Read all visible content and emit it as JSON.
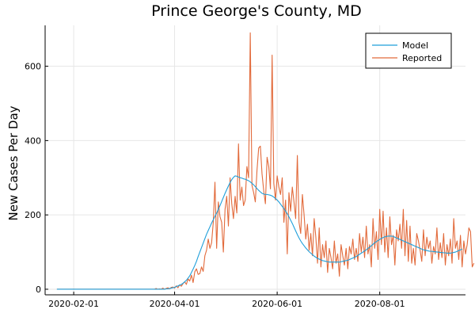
{
  "chart_data": {
    "type": "line",
    "title": "Prince George's County, MD",
    "xlabel": "",
    "ylabel": "New Cases Per Day",
    "x_start": "2020-01-22",
    "x_range": [
      "2020-01-15",
      "2020-09-21"
    ],
    "xticks": [
      "2020-02-01",
      "2020-04-01",
      "2020-06-01",
      "2020-08-01"
    ],
    "ylim": [
      -15,
      710
    ],
    "yticks": [
      0,
      200,
      400,
      600
    ],
    "grid": true,
    "legend_position": "top-right",
    "series": [
      {
        "name": "Model",
        "color": "#1f9fda",
        "values": [
          0,
          0,
          0,
          0,
          0,
          0,
          0,
          0,
          0,
          0,
          0,
          0,
          0,
          0,
          0,
          0,
          0,
          0,
          0,
          0,
          0,
          0,
          0,
          0,
          0,
          0,
          0,
          0,
          0,
          0,
          0,
          0,
          0,
          0,
          0,
          0,
          0,
          0,
          0,
          0,
          0,
          0,
          0,
          0,
          0,
          0,
          0,
          0,
          0,
          0,
          0,
          0,
          0,
          0,
          0,
          0,
          0,
          0,
          0,
          0,
          0,
          0,
          0,
          0,
          0,
          1,
          1,
          2,
          3,
          4,
          5,
          7,
          9,
          11,
          13,
          16,
          20,
          24,
          30,
          36,
          45,
          54,
          64,
          75,
          88,
          100,
          112,
          124,
          136,
          148,
          158,
          168,
          178,
          187,
          196,
          205,
          215,
          225,
          236,
          247,
          258,
          268,
          278,
          287,
          295,
          301,
          305,
          304,
          302,
          300,
          299,
          297,
          296,
          294,
          292,
          289,
          285,
          281,
          276,
          271,
          266,
          262,
          258,
          256,
          255,
          255,
          254,
          253,
          251,
          248,
          244,
          240,
          235,
          229,
          223,
          217,
          210,
          203,
          195,
          186,
          177,
          167,
          157,
          147,
          138,
          130,
          123,
          117,
          111,
          106,
          101,
          97,
          93,
          89,
          86,
          83,
          81,
          79,
          77,
          76,
          75,
          74,
          73,
          73,
          73,
          73,
          73,
          73,
          73,
          74,
          75,
          76,
          77,
          78,
          80,
          82,
          84,
          86,
          88,
          91,
          94,
          97,
          100,
          103,
          106,
          110,
          113,
          117,
          121,
          125,
          128,
          131,
          134,
          137,
          139,
          141,
          142,
          143,
          143,
          143,
          142,
          140,
          138,
          136,
          134,
          132,
          130,
          128,
          126,
          124,
          122,
          120,
          118,
          116,
          114,
          112,
          110,
          108,
          106,
          105,
          104,
          103,
          102,
          102,
          101,
          101,
          100,
          100,
          99,
          99,
          98,
          98,
          97,
          97,
          97,
          98,
          99,
          100,
          102,
          104,
          106,
          108
        ]
      },
      {
        "name": "Reported",
        "color": "#e26a3b",
        "values": [
          0,
          0,
          0,
          0,
          0,
          0,
          0,
          0,
          0,
          0,
          0,
          0,
          0,
          0,
          0,
          0,
          0,
          0,
          0,
          0,
          0,
          0,
          0,
          0,
          0,
          0,
          0,
          0,
          0,
          0,
          0,
          0,
          0,
          0,
          0,
          0,
          0,
          0,
          0,
          0,
          0,
          0,
          0,
          0,
          0,
          0,
          0,
          0,
          0,
          0,
          0,
          0,
          0,
          0,
          0,
          0,
          0,
          0,
          0,
          2,
          0,
          1,
          0,
          3,
          0,
          2,
          4,
          1,
          5,
          6,
          3,
          9,
          4,
          12,
          8,
          15,
          20,
          13,
          28,
          22,
          38,
          18,
          47,
          55,
          40,
          42,
          60,
          48,
          90,
          105,
          135,
          110,
          125,
          180,
          288,
          110,
          235,
          195,
          180,
          100,
          215,
          250,
          170,
          300,
          230,
          190,
          250,
          205,
          391,
          240,
          275,
          225,
          240,
          330,
          300,
          690,
          280,
          260,
          235,
          320,
          380,
          385,
          310,
          265,
          230,
          355,
          330,
          270,
          630,
          285,
          240,
          305,
          275,
          255,
          300,
          180,
          240,
          95,
          260,
          210,
          275,
          235,
          190,
          360,
          180,
          150,
          255,
          200,
          135,
          175,
          105,
          150,
          90,
          190,
          140,
          70,
          165,
          60,
          120,
          85,
          130,
          45,
          110,
          85,
          55,
          130,
          70,
          95,
          35,
          120,
          90,
          65,
          110,
          55,
          115,
          95,
          135,
          80,
          110,
          75,
          150,
          100,
          140,
          85,
          170,
          95,
          120,
          60,
          190,
          110,
          155,
          80,
          215,
          120,
          210,
          100,
          165,
          85,
          195,
          120,
          145,
          65,
          160,
          130,
          175,
          110,
          215,
          90,
          185,
          75,
          170,
          70,
          110,
          65,
          150,
          130,
          105,
          75,
          160,
          90,
          140,
          110,
          130,
          70,
          115,
          95,
          165,
          80,
          125,
          85,
          150,
          65,
          120,
          90,
          135,
          70,
          190,
          110,
          130,
          80,
          145,
          60,
          130,
          95,
          120,
          165,
          155,
          60,
          70
        ]
      }
    ]
  }
}
